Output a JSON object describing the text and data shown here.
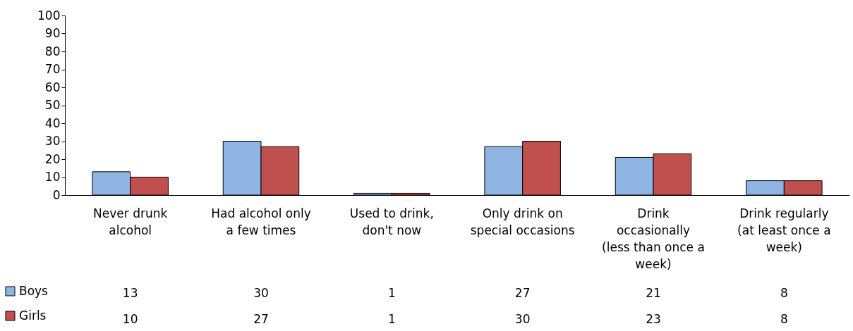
{
  "chart_data": {
    "type": "bar",
    "categories": [
      "Never drunk alcohol",
      "Had alcohol only a few times",
      "Used to drink, don't now",
      "Only drink on special occasions",
      "Drink occasionally (less than once a week)",
      "Drink regularly (at least once a week)"
    ],
    "series": [
      {
        "name": "Boys",
        "color": "#8db4e2",
        "values": [
          13,
          30,
          1,
          27,
          21,
          8
        ]
      },
      {
        "name": "Girls",
        "color": "#c0504d",
        "values": [
          10,
          27,
          1,
          30,
          23,
          8
        ]
      }
    ],
    "ylim": [
      0,
      100
    ],
    "yticks": [
      0,
      10,
      20,
      30,
      40,
      50,
      60,
      70,
      80,
      90,
      100
    ],
    "data_labels": true,
    "legend": "bottom left",
    "grid": false
  }
}
